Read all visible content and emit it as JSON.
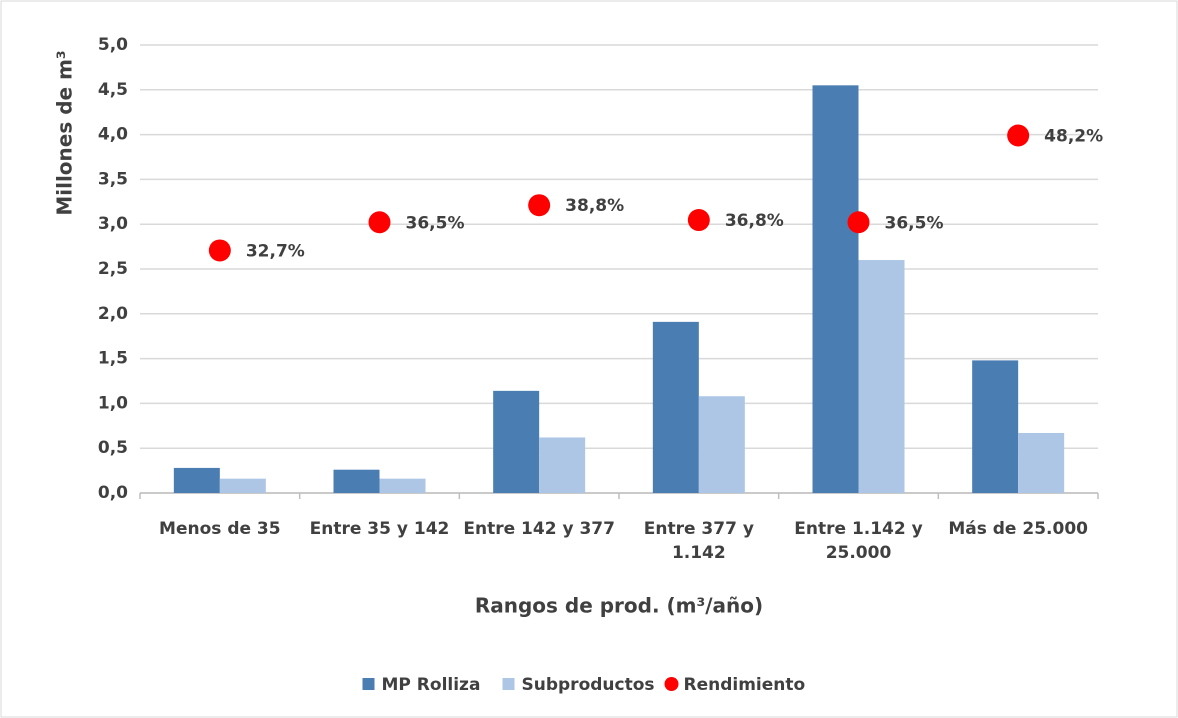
{
  "chart_data": {
    "type": "bar",
    "y_label": "Millones de m³",
    "x_label": "Rangos de prod. (m³/año)",
    "categories": [
      "Menos de 35",
      "Entre 35 y 142",
      "Entre 142 y 377",
      "Entre 377 y 1.142",
      "Entre 1.142 y 25.000",
      "Más de 25.000"
    ],
    "series": [
      {
        "name": "MP Rolliza",
        "color": "#4a7eb2",
        "values": [
          0.28,
          0.26,
          1.14,
          1.91,
          4.55,
          1.48
        ]
      },
      {
        "name": "Subproductos",
        "color": "#adc6e6",
        "values": [
          0.16,
          0.16,
          0.62,
          1.08,
          2.6,
          0.67
        ]
      },
      {
        "name": "Rendimiento",
        "color": "#ff0000",
        "type": "scatter",
        "axis": "y2",
        "values": [
          32.7,
          36.5,
          38.8,
          36.8,
          36.5,
          48.2
        ],
        "value_labels": [
          "32,7%",
          "36,5%",
          "38,8%",
          "36,8%",
          "36,5%",
          "48,2%"
        ]
      }
    ],
    "ylim": [
      0,
      5
    ],
    "yticks": [
      {
        "value": 0,
        "label": "0,0"
      },
      {
        "value": 0.5,
        "label": "0,5"
      },
      {
        "value": 1,
        "label": "1,0"
      },
      {
        "value": 1.5,
        "label": "1,5"
      },
      {
        "value": 2,
        "label": "2,0"
      },
      {
        "value": 2.5,
        "label": "2,5"
      },
      {
        "value": 3,
        "label": "3,0"
      },
      {
        "value": 3.5,
        "label": "3,5"
      },
      {
        "value": 4,
        "label": "4,0"
      },
      {
        "value": 4.5,
        "label": "4,5"
      },
      {
        "value": 5,
        "label": "5,0"
      }
    ],
    "y2lim": [
      0,
      60.4
    ],
    "grid": true,
    "legend": "bottom"
  }
}
